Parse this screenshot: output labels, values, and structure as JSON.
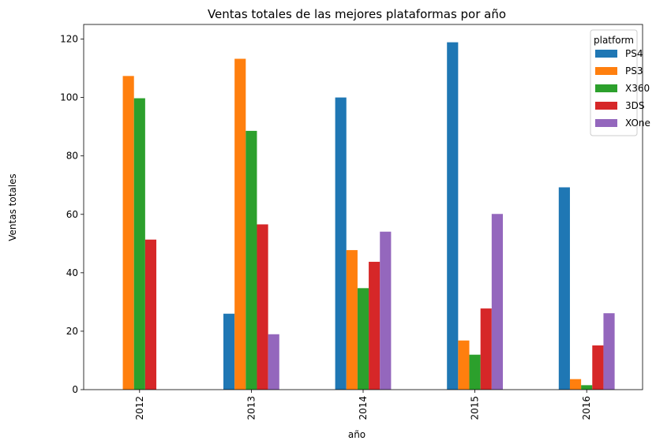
{
  "chart_data": {
    "type": "bar",
    "title": "Ventas totales de las mejores plataformas por año",
    "xlabel": "año",
    "ylabel": "Ventas totales",
    "categories": [
      "2012",
      "2013",
      "2014",
      "2015",
      "2016"
    ],
    "ylim": [
      0,
      125
    ],
    "yticks": [
      0,
      20,
      40,
      60,
      80,
      100,
      120
    ],
    "legend": {
      "title": "platform",
      "position": "top-right"
    },
    "series": [
      {
        "name": "PS4",
        "color": "#1f77b4",
        "values": [
          0,
          25.99,
          100.0,
          118.9,
          69.25
        ]
      },
      {
        "name": "PS3",
        "color": "#ff7f0e",
        "values": [
          107.36,
          113.25,
          47.76,
          16.82,
          3.6
        ]
      },
      {
        "name": "X360",
        "color": "#2ca02c",
        "values": [
          99.74,
          88.58,
          34.74,
          11.96,
          1.52
        ]
      },
      {
        "name": "3DS",
        "color": "#d62728",
        "values": [
          51.36,
          56.57,
          43.76,
          27.78,
          15.14
        ]
      },
      {
        "name": "XOne",
        "color": "#9467bd",
        "values": [
          0,
          18.96,
          54.07,
          60.14,
          26.15
        ]
      }
    ]
  }
}
